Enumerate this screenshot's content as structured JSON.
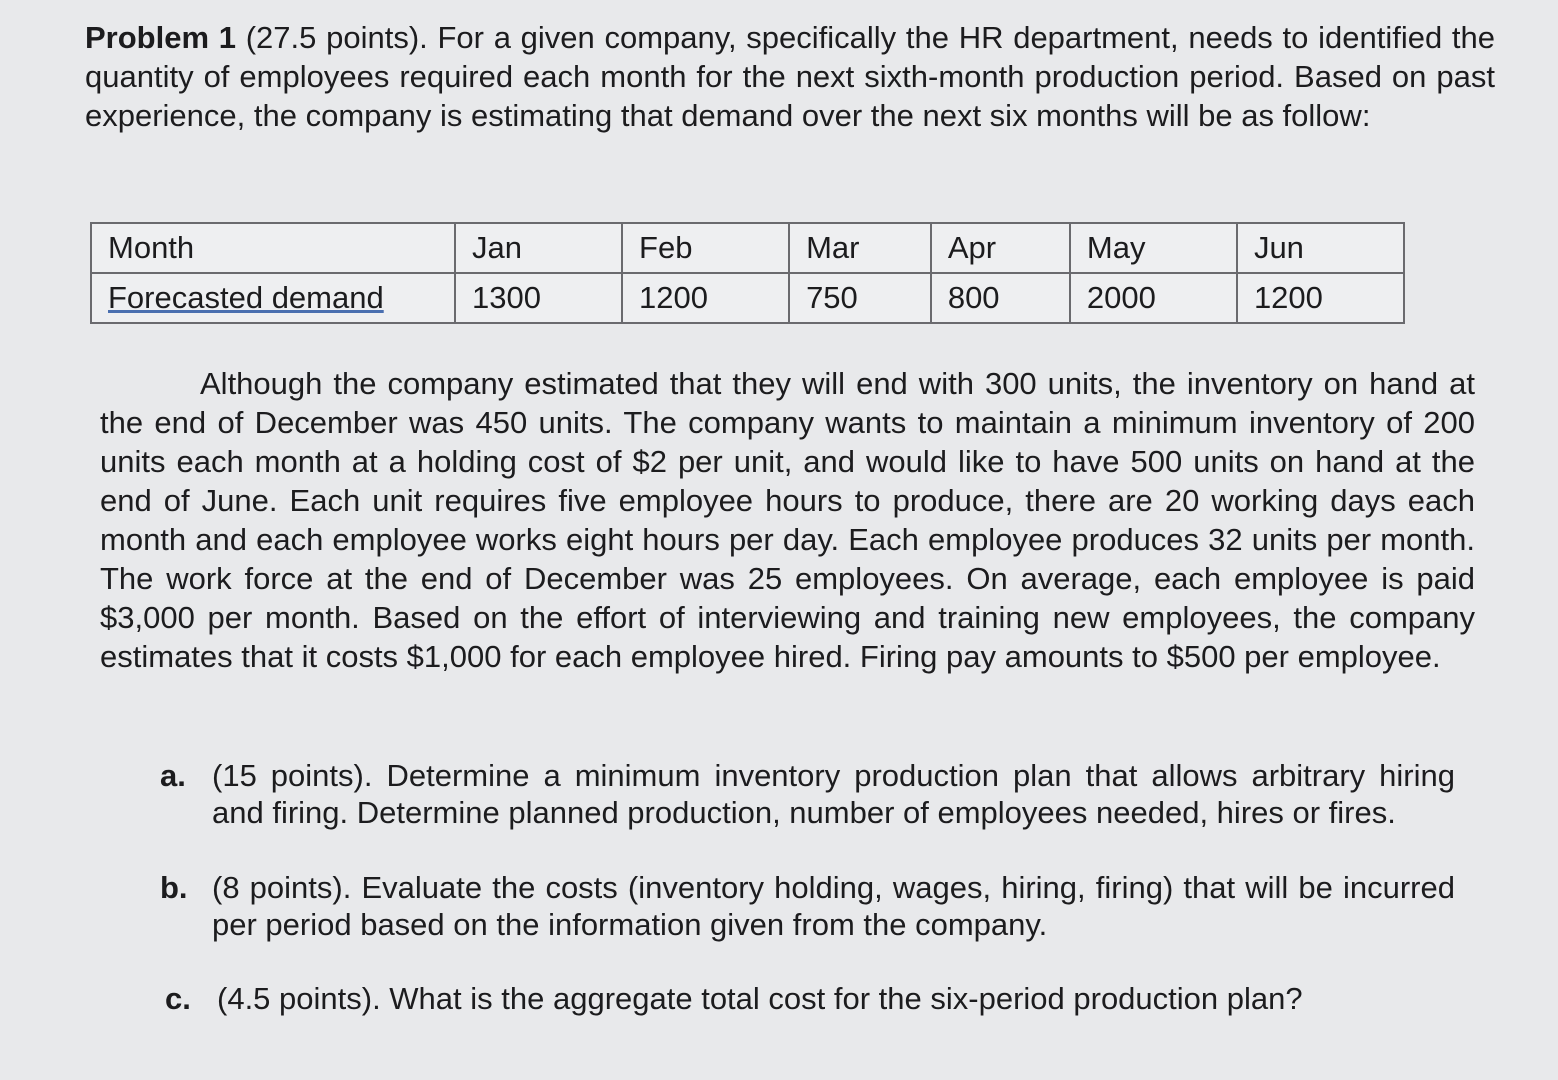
{
  "problem": {
    "title": "Problem 1",
    "intro": " (27.5 points). For a given company, specifically the HR department, needs to identified the quantity of employees required each month for the next sixth-month production period. Based on past experience, the company is estimating that demand over the next six months will be as follow:"
  },
  "table": {
    "headers": [
      "Month",
      "Jan",
      "Feb",
      "Mar",
      "Apr",
      "May",
      "Jun"
    ],
    "row": [
      "Forecasted demand",
      "1300",
      "1200",
      "750",
      "800",
      "2000",
      "1200"
    ]
  },
  "paragraph": "Although the company estimated that they will end with 300 units, the inventory on hand at the end of December was 450 units. The company wants to maintain a minimum inventory of 200 units each month at a holding cost of $2 per unit, and would like to have 500 units on hand at the end of June. Each unit requires five employee hours to produce, there are 20 working days each month and each employee works eight hours per day. Each employee produces 32 units per month. The work force at the end of December was 25 employees. On average, each employee is paid $3,000 per month. Based on the effort of interviewing and training new employees, the company estimates that it costs $1,000 for each employee hired. Firing pay amounts to $500 per employee.",
  "questions": [
    {
      "label": "a.",
      "text": "(15 points). Determine a minimum inventory production plan that allows arbitrary hiring and firing. Determine planned production, number of employees needed, hires or fires."
    },
    {
      "label": "b.",
      "text": "(8 points). Evaluate the costs (inventory holding, wages, hiring, firing) that will be incurred per period based on the information given from the company."
    },
    {
      "label": "c.",
      "text": "(4.5 points). What is the aggregate total cost for the six-period production plan?"
    }
  ]
}
